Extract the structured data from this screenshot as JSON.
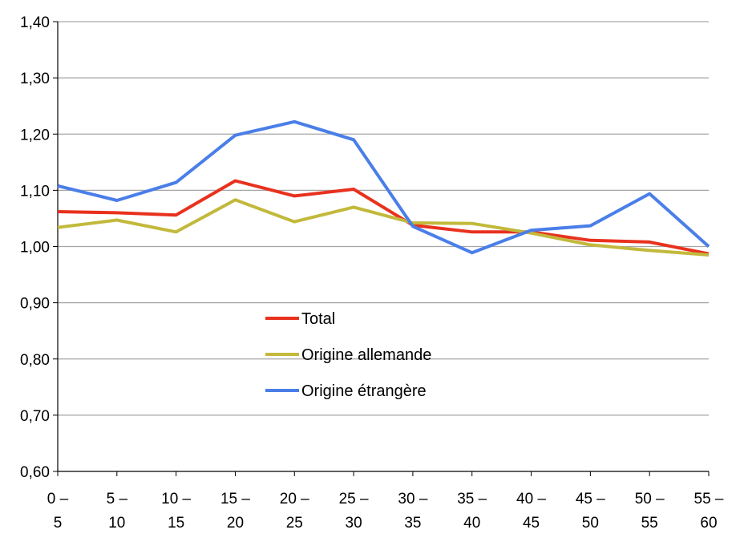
{
  "chart_data": {
    "type": "line",
    "title": "",
    "xlabel": "",
    "ylabel": "",
    "categories": [
      [
        "0 –",
        "5"
      ],
      [
        "5 –",
        "10"
      ],
      [
        "10 –",
        "15"
      ],
      [
        "15 –",
        "20"
      ],
      [
        "20 –",
        "25"
      ],
      [
        "25 –",
        "30"
      ],
      [
        "30 –",
        "35"
      ],
      [
        "35 –",
        "40"
      ],
      [
        "40 –",
        "45"
      ],
      [
        "45 –",
        "50"
      ],
      [
        "50 –",
        "55"
      ],
      [
        "55 –",
        "60"
      ]
    ],
    "ylim": [
      0.6,
      1.4
    ],
    "yticks": [
      "0,60",
      "0,70",
      "0,80",
      "0,90",
      "1,00",
      "1,10",
      "1,20",
      "1,30",
      "1,40"
    ],
    "grid": true,
    "legend_position": "center-left",
    "series": [
      {
        "name": "Total",
        "color": "#e8311e",
        "values": [
          1.062,
          1.06,
          1.056,
          1.117,
          1.09,
          1.102,
          1.038,
          1.026,
          1.026,
          1.011,
          1.008,
          0.987
        ]
      },
      {
        "name": "Origine allemande",
        "color": "#c2b93c",
        "values": [
          1.034,
          1.047,
          1.026,
          1.083,
          1.044,
          1.07,
          1.042,
          1.041,
          1.024,
          1.003,
          0.993,
          0.985
        ]
      },
      {
        "name": "Origine étrangère",
        "color": "#4a7ee8",
        "values": [
          1.108,
          1.082,
          1.114,
          1.198,
          1.222,
          1.19,
          1.036,
          0.989,
          1.029,
          1.037,
          1.094,
          1.0
        ]
      }
    ]
  }
}
